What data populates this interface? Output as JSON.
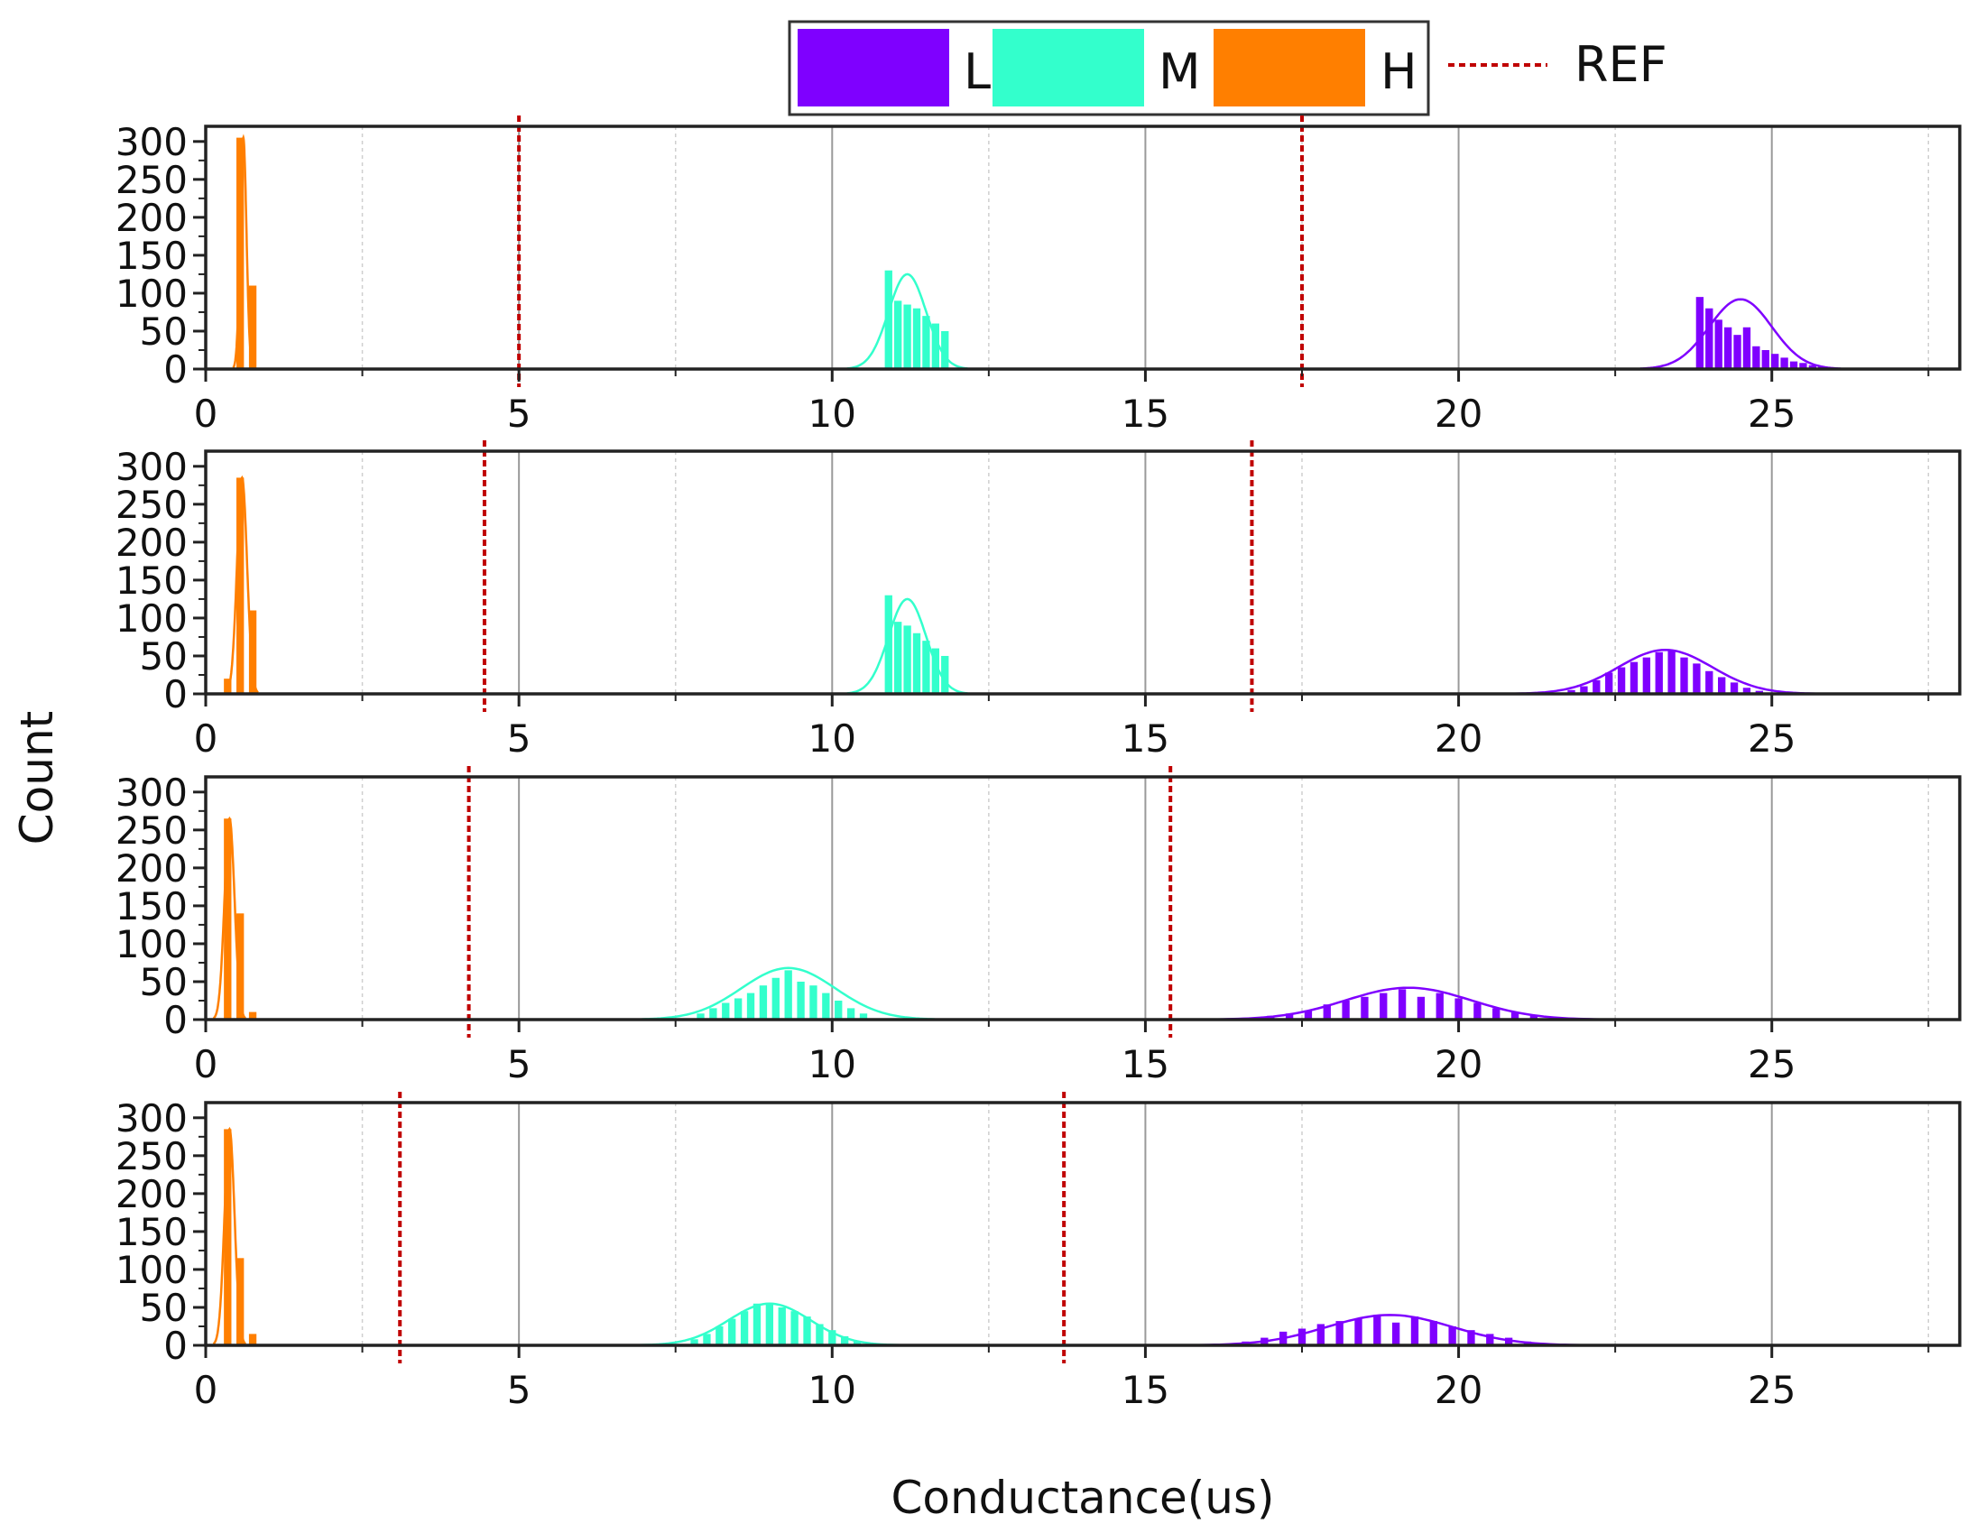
{
  "figure": {
    "ylabel": "Count",
    "xlabel": "Conductance(us)"
  },
  "legend": {
    "items": [
      {
        "label": "L",
        "color": "#7F00FF"
      },
      {
        "label": "M",
        "color": "#33FFCC"
      },
      {
        "label": "H",
        "color": "#FF7F00"
      }
    ],
    "ref_label": "REF",
    "ref_color": "#C00000"
  },
  "chart_data": [
    {
      "type": "bar",
      "panel": 1,
      "xlim": [
        0,
        28
      ],
      "ylim": [
        0,
        320
      ],
      "xticks": [
        0,
        5,
        10,
        15,
        20,
        25
      ],
      "yticks": [
        0,
        50,
        100,
        150,
        200,
        250,
        300
      ],
      "ref_lines": [
        5.0,
        17.5
      ],
      "series": [
        {
          "name": "H",
          "bin_width": 0.12,
          "x": [
            0.55,
            0.75
          ],
          "values": [
            305,
            110
          ],
          "fit": {
            "mean": 0.6,
            "sd": 0.05,
            "peak": 305
          }
        },
        {
          "name": "M",
          "bin_width": 0.12,
          "x": [
            10.9,
            11.05,
            11.2,
            11.35,
            11.5,
            11.65,
            11.8
          ],
          "values": [
            130,
            90,
            85,
            80,
            70,
            60,
            50
          ],
          "fit": {
            "mean": 11.2,
            "sd": 0.3,
            "peak": 125
          }
        },
        {
          "name": "L",
          "bin_width": 0.12,
          "x": [
            23.85,
            24.0,
            24.15,
            24.3,
            24.45,
            24.6,
            24.75,
            24.9,
            25.05,
            25.2,
            25.35,
            25.5,
            25.65,
            25.8
          ],
          "values": [
            95,
            80,
            65,
            55,
            45,
            55,
            30,
            25,
            20,
            15,
            10,
            8,
            5,
            3
          ],
          "fit": {
            "mean": 24.5,
            "sd": 0.5,
            "peak": 92
          }
        }
      ]
    },
    {
      "type": "bar",
      "panel": 2,
      "xlim": [
        0,
        28
      ],
      "ylim": [
        0,
        320
      ],
      "xticks": [
        0,
        5,
        10,
        15,
        20,
        25
      ],
      "yticks": [
        0,
        50,
        100,
        150,
        200,
        250,
        300
      ],
      "ref_lines": [
        4.45,
        16.7
      ],
      "series": [
        {
          "name": "H",
          "bin_width": 0.12,
          "x": [
            0.35,
            0.55,
            0.75
          ],
          "values": [
            20,
            285,
            110
          ],
          "fit": {
            "mean": 0.58,
            "sd": 0.08,
            "peak": 285
          }
        },
        {
          "name": "M",
          "bin_width": 0.12,
          "x": [
            10.9,
            11.05,
            11.2,
            11.35,
            11.5,
            11.65,
            11.8
          ],
          "values": [
            130,
            95,
            90,
            80,
            70,
            60,
            50
          ],
          "fit": {
            "mean": 11.2,
            "sd": 0.3,
            "peak": 125
          }
        },
        {
          "name": "L",
          "bin_width": 0.12,
          "x": [
            21.8,
            22.0,
            22.2,
            22.4,
            22.6,
            22.8,
            23.0,
            23.2,
            23.4,
            23.6,
            23.8,
            24.0,
            24.2,
            24.4,
            24.6,
            24.8
          ],
          "values": [
            5,
            10,
            18,
            28,
            35,
            42,
            48,
            55,
            58,
            48,
            40,
            30,
            22,
            15,
            8,
            4
          ],
          "fit": {
            "mean": 23.3,
            "sd": 0.75,
            "peak": 58
          }
        }
      ]
    },
    {
      "type": "bar",
      "panel": 3,
      "xlim": [
        0,
        28
      ],
      "ylim": [
        0,
        320
      ],
      "xticks": [
        0,
        5,
        10,
        15,
        20,
        25
      ],
      "yticks": [
        0,
        50,
        100,
        150,
        200,
        250,
        300
      ],
      "ref_lines": [
        4.2,
        15.4
      ],
      "series": [
        {
          "name": "H",
          "bin_width": 0.12,
          "x": [
            0.35,
            0.55,
            0.75
          ],
          "values": [
            265,
            140,
            10
          ],
          "fit": {
            "mean": 0.38,
            "sd": 0.08,
            "peak": 265
          }
        },
        {
          "name": "M",
          "bin_width": 0.12,
          "x": [
            7.9,
            8.1,
            8.3,
            8.5,
            8.7,
            8.9,
            9.1,
            9.3,
            9.5,
            9.7,
            9.9,
            10.1,
            10.3,
            10.5
          ],
          "values": [
            8,
            15,
            22,
            28,
            35,
            45,
            55,
            65,
            50,
            45,
            35,
            25,
            15,
            8
          ],
          "fit": {
            "mean": 9.3,
            "sd": 0.75,
            "peak": 68
          }
        },
        {
          "name": "L",
          "bin_width": 0.12,
          "x": [
            17.0,
            17.3,
            17.6,
            17.9,
            18.2,
            18.5,
            18.8,
            19.1,
            19.4,
            19.7,
            20.0,
            20.3,
            20.6,
            20.9,
            21.2
          ],
          "values": [
            5,
            8,
            12,
            20,
            25,
            30,
            35,
            40,
            30,
            35,
            28,
            22,
            15,
            10,
            5
          ],
          "fit": {
            "mean": 19.2,
            "sd": 1.0,
            "peak": 42
          }
        }
      ]
    },
    {
      "type": "bar",
      "panel": 4,
      "xlim": [
        0,
        28
      ],
      "ylim": [
        0,
        320
      ],
      "xticks": [
        0,
        5,
        10,
        15,
        20,
        25
      ],
      "yticks": [
        0,
        50,
        100,
        150,
        200,
        250,
        300
      ],
      "ref_lines": [
        3.1,
        13.7
      ],
      "series": [
        {
          "name": "H",
          "bin_width": 0.12,
          "x": [
            0.35,
            0.55,
            0.75
          ],
          "values": [
            285,
            115,
            15
          ],
          "fit": {
            "mean": 0.38,
            "sd": 0.08,
            "peak": 285
          }
        },
        {
          "name": "M",
          "bin_width": 0.12,
          "x": [
            7.8,
            8.0,
            8.2,
            8.4,
            8.6,
            8.8,
            9.0,
            9.2,
            9.4,
            9.6,
            9.8,
            10.0,
            10.2,
            10.4
          ],
          "values": [
            8,
            15,
            25,
            35,
            45,
            55,
            55,
            50,
            45,
            38,
            28,
            20,
            12,
            6
          ],
          "fit": {
            "mean": 9.0,
            "sd": 0.65,
            "peak": 55
          }
        },
        {
          "name": "L",
          "bin_width": 0.12,
          "x": [
            16.6,
            16.9,
            17.2,
            17.5,
            17.8,
            18.1,
            18.4,
            18.7,
            19.0,
            19.3,
            19.6,
            19.9,
            20.2,
            20.5,
            20.8,
            21.1
          ],
          "values": [
            5,
            10,
            18,
            22,
            28,
            32,
            35,
            40,
            30,
            38,
            32,
            25,
            20,
            15,
            10,
            5
          ],
          "fit": {
            "mean": 18.9,
            "sd": 1.0,
            "peak": 40
          }
        }
      ]
    }
  ]
}
